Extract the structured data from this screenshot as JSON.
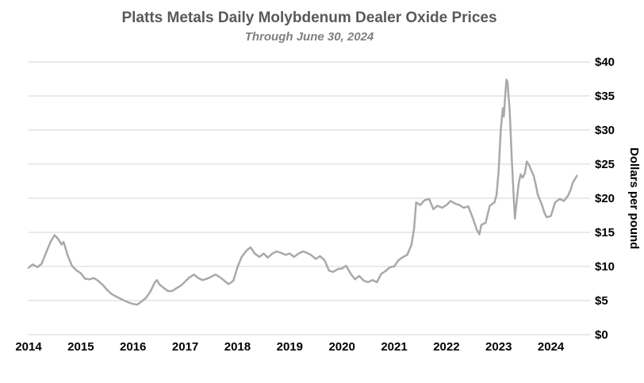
{
  "chart_data": {
    "type": "line",
    "title": "Platts Metals Daily Molybdenum Dealer Oxide Prices",
    "subtitle": "Through June 30, 2024",
    "ylabel": "Dollars per pound",
    "xlabel": "",
    "ylim": [
      0,
      40
    ],
    "xlim": [
      2014,
      2024.75
    ],
    "grid": true,
    "legend": false,
    "colors": {
      "line": "#a9a9a9",
      "grid": "#d4d4d4",
      "title": "#595959",
      "subtitle": "#7f7f7f",
      "axis_text": "#000000",
      "background": "#ffffff"
    },
    "y_ticks": [
      {
        "label": "$0",
        "value": 0
      },
      {
        "label": "$5",
        "value": 5
      },
      {
        "label": "$10",
        "value": 10
      },
      {
        "label": "$15",
        "value": 15
      },
      {
        "label": "$20",
        "value": 20
      },
      {
        "label": "$25",
        "value": 25
      },
      {
        "label": "$30",
        "value": 30
      },
      {
        "label": "$35",
        "value": 35
      },
      {
        "label": "$40",
        "value": 40
      }
    ],
    "x_ticks": [
      {
        "label": "2014",
        "value": 2014
      },
      {
        "label": "2015",
        "value": 2015
      },
      {
        "label": "2016",
        "value": 2016
      },
      {
        "label": "2017",
        "value": 2017
      },
      {
        "label": "2018",
        "value": 2018
      },
      {
        "label": "2019",
        "value": 2019
      },
      {
        "label": "2020",
        "value": 2020
      },
      {
        "label": "2021",
        "value": 2021
      },
      {
        "label": "2022",
        "value": 2022
      },
      {
        "label": "2023",
        "value": 2023
      },
      {
        "label": "2024",
        "value": 2024
      }
    ],
    "series": [
      {
        "name": "Molybdenum dealer oxide price (USD per pound)",
        "points": [
          [
            2014.0,
            9.8
          ],
          [
            2014.08,
            10.3
          ],
          [
            2014.17,
            9.9
          ],
          [
            2014.25,
            10.4
          ],
          [
            2014.33,
            11.9
          ],
          [
            2014.42,
            13.6
          ],
          [
            2014.5,
            14.6
          ],
          [
            2014.58,
            13.9
          ],
          [
            2014.63,
            13.2
          ],
          [
            2014.67,
            13.6
          ],
          [
            2014.75,
            11.6
          ],
          [
            2014.83,
            10.1
          ],
          [
            2014.92,
            9.4
          ],
          [
            2015.0,
            9.0
          ],
          [
            2015.08,
            8.2
          ],
          [
            2015.17,
            8.1
          ],
          [
            2015.25,
            8.3
          ],
          [
            2015.33,
            7.9
          ],
          [
            2015.42,
            7.3
          ],
          [
            2015.5,
            6.6
          ],
          [
            2015.58,
            6.0
          ],
          [
            2015.67,
            5.6
          ],
          [
            2015.75,
            5.3
          ],
          [
            2015.83,
            5.0
          ],
          [
            2015.92,
            4.7
          ],
          [
            2016.0,
            4.5
          ],
          [
            2016.08,
            4.4
          ],
          [
            2016.17,
            4.9
          ],
          [
            2016.25,
            5.4
          ],
          [
            2016.33,
            6.3
          ],
          [
            2016.42,
            7.7
          ],
          [
            2016.46,
            8.0
          ],
          [
            2016.5,
            7.4
          ],
          [
            2016.58,
            6.9
          ],
          [
            2016.67,
            6.4
          ],
          [
            2016.75,
            6.4
          ],
          [
            2016.83,
            6.8
          ],
          [
            2016.92,
            7.2
          ],
          [
            2017.0,
            7.8
          ],
          [
            2017.08,
            8.4
          ],
          [
            2017.17,
            8.8
          ],
          [
            2017.25,
            8.3
          ],
          [
            2017.33,
            8.0
          ],
          [
            2017.42,
            8.2
          ],
          [
            2017.5,
            8.5
          ],
          [
            2017.58,
            8.8
          ],
          [
            2017.67,
            8.4
          ],
          [
            2017.75,
            7.9
          ],
          [
            2017.83,
            7.4
          ],
          [
            2017.92,
            7.9
          ],
          [
            2018.0,
            9.9
          ],
          [
            2018.08,
            11.4
          ],
          [
            2018.17,
            12.3
          ],
          [
            2018.25,
            12.8
          ],
          [
            2018.33,
            11.9
          ],
          [
            2018.42,
            11.4
          ],
          [
            2018.5,
            11.9
          ],
          [
            2018.58,
            11.3
          ],
          [
            2018.67,
            11.9
          ],
          [
            2018.75,
            12.2
          ],
          [
            2018.83,
            12.0
          ],
          [
            2018.92,
            11.7
          ],
          [
            2019.0,
            11.9
          ],
          [
            2019.08,
            11.4
          ],
          [
            2019.17,
            11.9
          ],
          [
            2019.25,
            12.2
          ],
          [
            2019.33,
            12.0
          ],
          [
            2019.42,
            11.6
          ],
          [
            2019.5,
            11.1
          ],
          [
            2019.58,
            11.5
          ],
          [
            2019.67,
            10.9
          ],
          [
            2019.75,
            9.4
          ],
          [
            2019.83,
            9.2
          ],
          [
            2019.92,
            9.6
          ],
          [
            2020.0,
            9.7
          ],
          [
            2020.08,
            10.1
          ],
          [
            2020.17,
            8.9
          ],
          [
            2020.25,
            8.1
          ],
          [
            2020.33,
            8.6
          ],
          [
            2020.42,
            7.9
          ],
          [
            2020.5,
            7.7
          ],
          [
            2020.58,
            8.0
          ],
          [
            2020.67,
            7.7
          ],
          [
            2020.75,
            8.9
          ],
          [
            2020.83,
            9.3
          ],
          [
            2020.92,
            9.9
          ],
          [
            2021.0,
            10.0
          ],
          [
            2021.08,
            10.9
          ],
          [
            2021.17,
            11.4
          ],
          [
            2021.25,
            11.7
          ],
          [
            2021.33,
            13.2
          ],
          [
            2021.38,
            15.5
          ],
          [
            2021.42,
            19.4
          ],
          [
            2021.5,
            19.0
          ],
          [
            2021.58,
            19.7
          ],
          [
            2021.67,
            19.9
          ],
          [
            2021.75,
            18.4
          ],
          [
            2021.83,
            18.9
          ],
          [
            2021.92,
            18.6
          ],
          [
            2022.0,
            19.0
          ],
          [
            2022.08,
            19.6
          ],
          [
            2022.17,
            19.2
          ],
          [
            2022.25,
            19.0
          ],
          [
            2022.33,
            18.6
          ],
          [
            2022.42,
            18.8
          ],
          [
            2022.5,
            17.2
          ],
          [
            2022.58,
            15.4
          ],
          [
            2022.63,
            14.7
          ],
          [
            2022.67,
            16.1
          ],
          [
            2022.75,
            16.4
          ],
          [
            2022.83,
            18.9
          ],
          [
            2022.92,
            19.4
          ],
          [
            2022.96,
            20.5
          ],
          [
            2023.0,
            24.0
          ],
          [
            2023.04,
            30.0
          ],
          [
            2023.08,
            33.2
          ],
          [
            2023.1,
            32.0
          ],
          [
            2023.13,
            35.5
          ],
          [
            2023.15,
            37.4
          ],
          [
            2023.17,
            37.0
          ],
          [
            2023.21,
            33.0
          ],
          [
            2023.25,
            26.0
          ],
          [
            2023.29,
            20.0
          ],
          [
            2023.31,
            17.0
          ],
          [
            2023.33,
            18.5
          ],
          [
            2023.38,
            22.0
          ],
          [
            2023.42,
            23.5
          ],
          [
            2023.46,
            23.0
          ],
          [
            2023.5,
            23.6
          ],
          [
            2023.54,
            25.4
          ],
          [
            2023.58,
            24.9
          ],
          [
            2023.63,
            24.0
          ],
          [
            2023.67,
            23.3
          ],
          [
            2023.71,
            22.0
          ],
          [
            2023.75,
            20.5
          ],
          [
            2023.83,
            19.0
          ],
          [
            2023.88,
            17.8
          ],
          [
            2023.92,
            17.2
          ],
          [
            2024.0,
            17.4
          ],
          [
            2024.08,
            19.4
          ],
          [
            2024.17,
            19.9
          ],
          [
            2024.25,
            19.6
          ],
          [
            2024.33,
            20.4
          ],
          [
            2024.38,
            21.3
          ],
          [
            2024.42,
            22.3
          ],
          [
            2024.46,
            22.8
          ],
          [
            2024.5,
            23.3
          ]
        ]
      }
    ]
  }
}
